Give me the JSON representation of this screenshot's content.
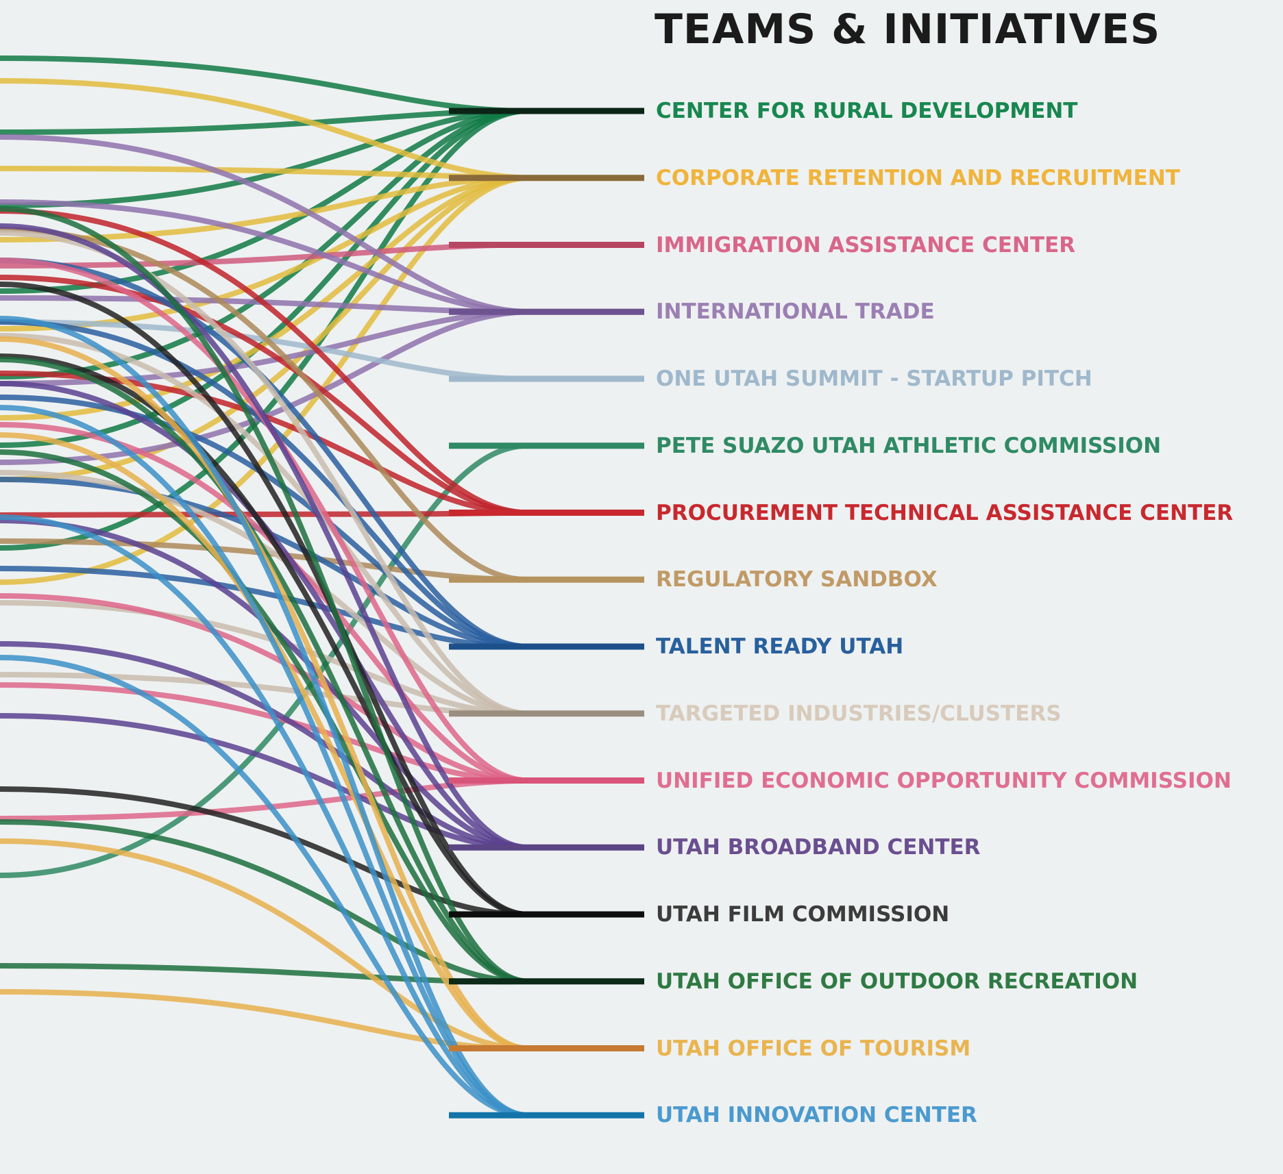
{
  "title": "TEAMS & INITIATIVES",
  "teams": [
    {
      "label": "CENTER FOR RURAL DEVELOPMENT",
      "text_color": "#17874f",
      "end_color": "#0b2416",
      "line_color": "#107a45",
      "sources": [
        85,
        193,
        300,
        425,
        550,
        650,
        800
      ],
      "spread": false
    },
    {
      "label": "CORPORATE RETENTION AND RECRUITMENT",
      "text_color": "#f0b43c",
      "end_color": "#8a6a3a",
      "line_color": "#e2bc3e",
      "sources": [
        118,
        246,
        350,
        480,
        610,
        700,
        850
      ],
      "spread": true
    },
    {
      "label": "IMMIGRATION ASSISTANCE CENTER",
      "text_color": "#d9668a",
      "end_color": "#b74663",
      "line_color": "#cf5a7e",
      "sources": [
        388
      ],
      "spread": false
    },
    {
      "label": "INTERNATIONAL TRADE",
      "text_color": "#9b7fb3",
      "end_color": "#6d5390",
      "line_color": "#8e72ad",
      "sources": [
        200,
        295,
        435,
        560,
        675
      ],
      "spread": true
    },
    {
      "label": "ONE UTAH SUMMIT - STARTUP PITCH",
      "text_color": "#9fb8cc",
      "end_color": "#9fb8cc",
      "line_color": "#9fb8cc",
      "sources": [
        470
      ],
      "spread": false
    },
    {
      "label": "PETE SUAZO UTAH ATHLETIC COMMISSION",
      "text_color": "#2f8a65",
      "end_color": "#2f8a65",
      "line_color": "#2f8a65",
      "sources": [
        1278
      ],
      "spread": false
    },
    {
      "label": "PROCUREMENT TECHNICAL ASSISTANCE CENTER",
      "text_color": "#c8282e",
      "end_color": "#c8282e",
      "line_color": "#c0232b",
      "sources": [
        308,
        405,
        545,
        752
      ],
      "spread": true
    },
    {
      "label": "REGULATORY SANDBOX",
      "text_color": "#c09a66",
      "end_color": "#b5935f",
      "line_color": "#ad8a5a",
      "sources": [
        335,
        790
      ],
      "spread": false
    },
    {
      "label": "TALENT READY UTAH",
      "text_color": "#28609e",
      "end_color": "#1d4f8a",
      "line_color": "#2a5fa0",
      "sources": [
        380,
        470,
        580,
        700,
        830
      ],
      "spread": true
    },
    {
      "label": "TARGETED INDUSTRIES/CLUSTERS",
      "text_color": "#d8cbbc",
      "end_color": "#9a8e80",
      "line_color": "#c9bcae",
      "sources": [
        340,
        490,
        690,
        880,
        985
      ],
      "spread": true
    },
    {
      "label": "UNIFIED ECONOMIC OPPORTUNITY COMMISSION",
      "text_color": "#e06e92",
      "end_color": "#d95479",
      "line_color": "#dd6689",
      "sources": [
        380,
        620,
        870,
        1000,
        1195
      ],
      "spread": true
    },
    {
      "label": "UTAH BROADBAND CENTER",
      "text_color": "#6a4f90",
      "end_color": "#5b4585",
      "line_color": "#5a4290",
      "sources": [
        330,
        560,
        760,
        940,
        1045
      ],
      "spread": true
    },
    {
      "label": "UTAH FILM COMMISSION",
      "text_color": "#3c3c3c",
      "end_color": "#0d0d0d",
      "line_color": "#222222",
      "sources": [
        415,
        520,
        1152
      ],
      "spread": true
    },
    {
      "label": "UTAH OFFICE OF OUTDOOR RECREATION",
      "text_color": "#2f7a44",
      "end_color": "#0c2a18",
      "line_color": "#1d7040",
      "sources": [
        305,
        525,
        660,
        1200,
        1410
      ],
      "spread": true
    },
    {
      "label": "UTAH OFFICE OF TOURISM",
      "text_color": "#e9b450",
      "end_color": "#c67a33",
      "line_color": "#e6b04e",
      "sources": [
        495,
        635,
        1228,
        1448
      ],
      "spread": true
    },
    {
      "label": "UTAH INNOVATION CENTER",
      "text_color": "#4a9acf",
      "end_color": "#1274a8",
      "line_color": "#3b90c8",
      "sources": [
        465,
        595,
        755,
        960
      ],
      "spread": true
    }
  ]
}
